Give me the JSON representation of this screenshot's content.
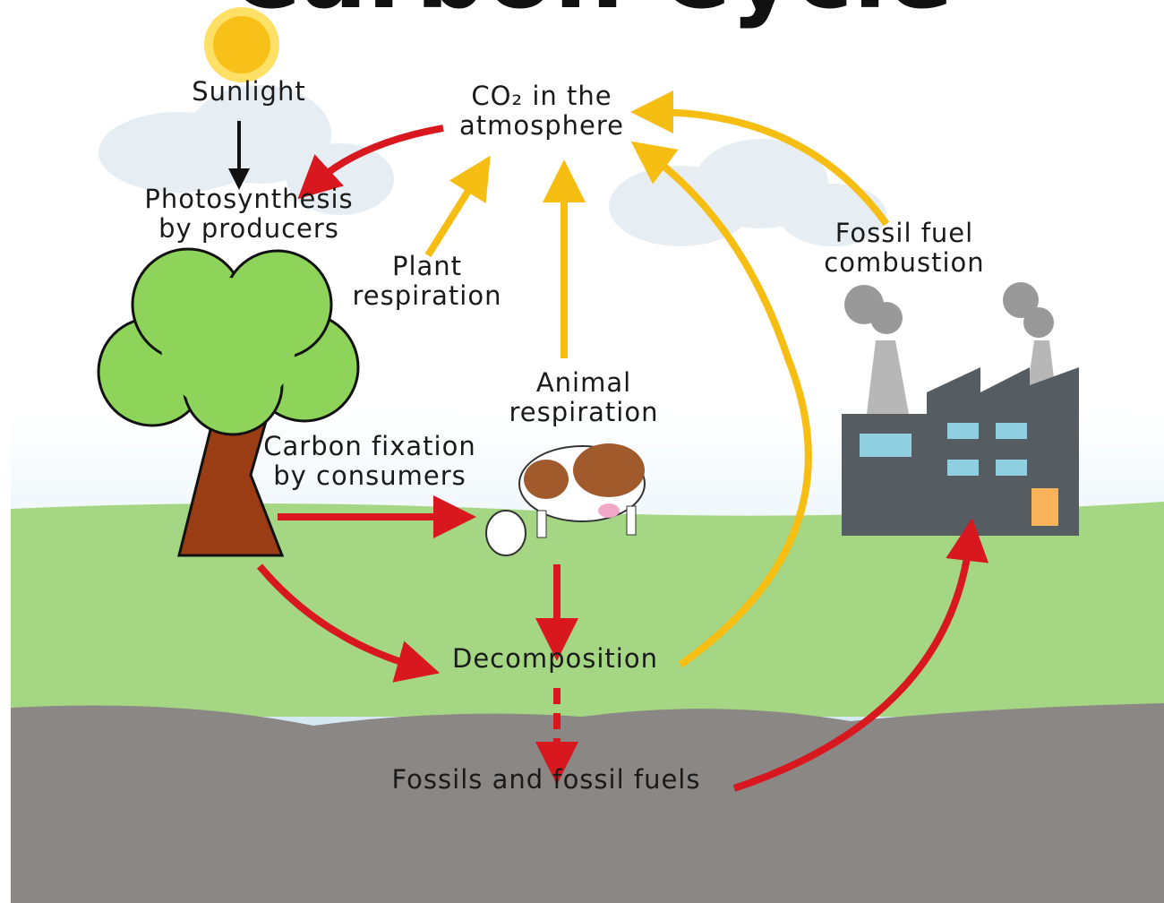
{
  "title": "Carbon Cycle",
  "nodes": [
    {
      "lines": [
        "Sunlight"
      ]
    },
    {
      "lines": [
        "CO₂ in the",
        "atmosphere"
      ]
    },
    {
      "lines": [
        "Photosynthesis",
        "by producers"
      ]
    },
    {
      "lines": [
        "Plant",
        "respiration"
      ]
    },
    {
      "lines": [
        "Fossil fuel",
        "combustion"
      ]
    },
    {
      "lines": [
        "Animal",
        "respiration"
      ]
    },
    {
      "lines": [
        "Carbon fixation",
        "by consumers"
      ]
    },
    {
      "lines": [
        "Decomposition"
      ]
    },
    {
      "lines": [
        "Fossils and fossil fuels"
      ]
    }
  ]
}
